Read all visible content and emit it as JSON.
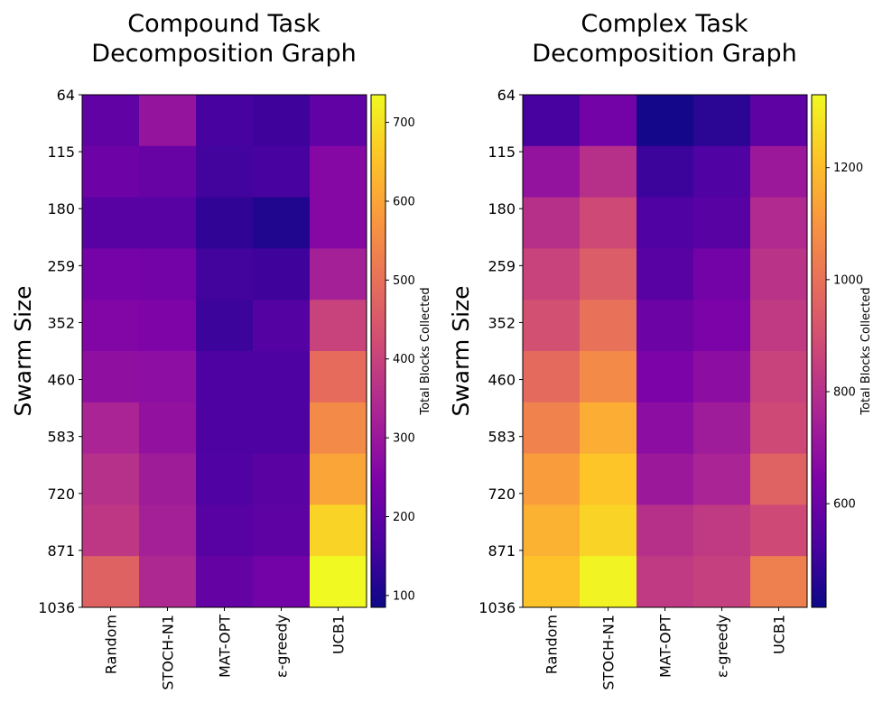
{
  "chart_data": [
    {
      "type": "heatmap",
      "title": "Compound Task\nDecomposition Graph",
      "ylabel": "Swarm Size",
      "y": [
        "64",
        "115",
        "180",
        "259",
        "352",
        "460",
        "583",
        "720",
        "871",
        "1036"
      ],
      "x": [
        "Random",
        "STOCH-N1",
        "MAT-OPT",
        "ε-greedy",
        "UCB1"
      ],
      "values": [
        [
          200,
          290,
          160,
          150,
          200
        ],
        [
          220,
          210,
          155,
          160,
          260
        ],
        [
          185,
          185,
          130,
          110,
          260
        ],
        [
          235,
          230,
          155,
          150,
          320
        ],
        [
          255,
          250,
          145,
          180,
          400
        ],
        [
          280,
          275,
          170,
          170,
          490
        ],
        [
          330,
          285,
          170,
          170,
          550
        ],
        [
          360,
          310,
          175,
          190,
          600
        ],
        [
          375,
          320,
          185,
          195,
          680
        ],
        [
          470,
          340,
          205,
          230,
          740
        ]
      ],
      "colorbar": {
        "label": "Total Blocks Collected",
        "range": [
          85,
          735
        ],
        "ticks": [
          100,
          200,
          300,
          400,
          500,
          600,
          700
        ],
        "tick_labels": [
          "100",
          "200",
          "300",
          "400",
          "500",
          "600",
          "700"
        ]
      },
      "colormap": "plasma",
      "grid": false
    },
    {
      "type": "heatmap",
      "title": "Complex Task\nDecomposition Graph",
      "ylabel": "Swarm Size",
      "y": [
        "64",
        "115",
        "180",
        "259",
        "352",
        "460",
        "583",
        "720",
        "871",
        "1036"
      ],
      "x": [
        "Random",
        "STOCH-N1",
        "MAT-OPT",
        "ε-greedy",
        "UCB1"
      ],
      "values": [
        [
          520,
          620,
          430,
          470,
          570
        ],
        [
          700,
          800,
          500,
          540,
          720
        ],
        [
          800,
          880,
          540,
          560,
          780
        ],
        [
          860,
          940,
          560,
          620,
          810
        ],
        [
          900,
          1000,
          600,
          640,
          830
        ],
        [
          980,
          1070,
          640,
          680,
          860
        ],
        [
          1050,
          1160,
          680,
          730,
          880
        ],
        [
          1120,
          1220,
          720,
          760,
          960
        ],
        [
          1170,
          1250,
          800,
          830,
          880
        ],
        [
          1210,
          1320,
          830,
          850,
          1040
        ]
      ],
      "colorbar": {
        "label": "Total Blocks Collected",
        "range": [
          415,
          1330
        ],
        "ticks": [
          600,
          800,
          1000,
          1200
        ],
        "tick_labels": [
          "600",
          "800",
          "1000",
          "1200"
        ]
      },
      "colormap": "plasma",
      "grid": false
    }
  ]
}
